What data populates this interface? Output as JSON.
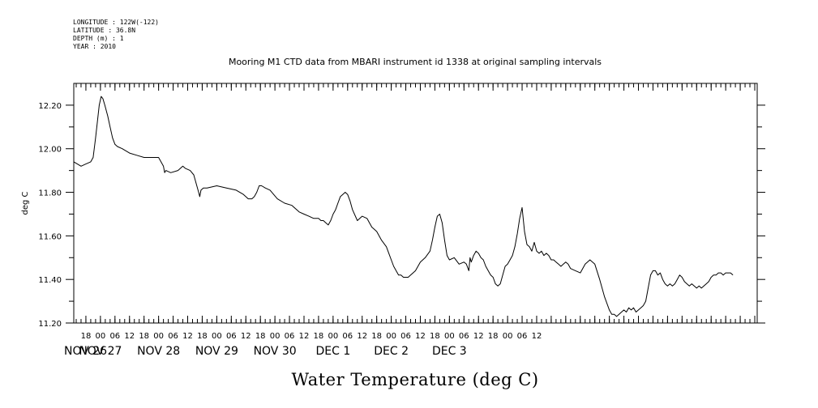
{
  "header": {
    "meta_lines": [
      "LONGITUDE : 122W(-122)",
      "LATITUDE : 36.8N",
      "DEPTH (m) : 1",
      "YEAR : 2010"
    ],
    "title": "Mooring M1 CTD data from MBARI instrument id 1338 at original sampling intervals"
  },
  "chart_data": {
    "type": "line",
    "title": "Mooring M1 CTD data from MBARI instrument id 1338 at original sampling intervals",
    "xlabel": "Water Temperature (deg C)",
    "ylabel": "deg C",
    "x_range": [
      "2010-11-26 13:00",
      "2010-12-03 19:00"
    ],
    "ylim": [
      11.2,
      12.3
    ],
    "y_ticks": [
      "11.20",
      "11.40",
      "11.60",
      "11.80",
      "12.00",
      "12.20"
    ],
    "x_hour_labels": [
      "18",
      "00",
      "06",
      "12",
      "18",
      "00",
      "06",
      "12",
      "18",
      "00",
      "06",
      "12",
      "18",
      "00",
      "06",
      "12",
      "18",
      "00",
      "06",
      "12",
      "18",
      "00",
      "06",
      "12",
      "18",
      "00",
      "06",
      "12",
      "18",
      "00",
      "06",
      "12"
    ],
    "day_labels": [
      "NOV 26",
      "NOV 27",
      "NOV 28",
      "NOV 29",
      "NOV 30",
      "DEC  1",
      "DEC  2",
      "DEC  3"
    ],
    "grid": false,
    "legend": "none",
    "line_color": "#000000",
    "series": [
      {
        "x_hours_from_nov26_00": [
          13.0,
          16.0,
          18.0,
          20.0,
          21.0,
          22.0,
          23.0,
          23.5,
          24.3,
          25.0,
          25.8,
          27.0,
          28.0,
          29.0,
          30.0,
          31.0,
          33.0,
          36.0,
          39.0,
          42.0,
          45.0,
          48.0,
          50.0,
          50.5,
          51.0,
          53.0,
          56.0,
          58.0,
          59.0,
          61.0,
          62.5,
          63.5,
          64.5,
          65.0,
          65.5,
          66.5,
          68.0,
          72.0,
          76.0,
          80.0,
          83.0,
          85.0,
          86.5,
          87.5,
          88.5,
          89.5,
          90.5,
          92.0,
          94.0,
          97.0,
          100.0,
          103.0,
          106.0,
          108.0,
          110.0,
          112.0,
          114.0,
          115.0,
          116.0,
          117.0,
          118.0,
          119.0,
          120.0,
          121.0,
          122.0,
          123.0,
          124.0,
          125.0,
          126.0,
          127.0,
          128.0,
          130.0,
          132.0,
          134.0,
          135.0,
          136.0,
          137.0,
          138.0,
          140.0,
          142.0,
          143.0,
          144.0,
          145.0,
          146.0,
          147.0,
          148.0,
          149.0,
          150.0,
          151.0,
          152.0,
          153.0,
          154.0,
          156.0,
          158.0,
          160.0,
          161.0,
          162.0,
          163.0,
          164.0,
          165.0,
          166.0,
          167.0,
          168.0,
          170.0,
          172.0,
          174.0,
          175.0,
          176.0,
          176.5,
          177.0,
          178.0,
          179.0,
          180.0,
          181.0,
          182.0,
          183.0,
          184.0,
          185.0,
          186.0,
          187.0,
          188.0,
          189.0,
          190.0,
          191.0,
          192.0,
          193.0,
          194.0,
          195.0,
          196.0,
          197.0,
          198.0,
          199.0,
          200.0,
          201.0,
          202.0,
          203.0,
          204.0,
          205.0,
          206.0,
          207.0,
          208.0,
          209.0,
          210.0,
          211.0,
          212.0,
          213.0,
          214.0,
          215.0,
          216.0,
          217.0,
          218.0,
          220.0,
          222.0,
          224.0,
          226.0,
          228.0,
          230.0,
          232.0,
          234.0,
          235.0,
          236.0,
          237.0,
          238.0,
          239.0,
          240.0,
          241.0,
          242.0,
          243.0,
          244.0,
          245.0,
          246.0,
          247.0,
          248.0,
          249.0,
          250.0,
          251.0,
          252.0,
          253.0,
          254.0,
          255.0,
          256.0,
          257.0,
          258.0,
          259.0,
          260.0,
          261.0,
          262.0,
          263.0,
          264.0,
          265.0,
          266.0,
          267.0,
          268.0,
          269.0,
          270.0,
          271.0,
          272.0,
          273.0,
          274.0,
          275.0,
          276.0,
          277.0,
          278.0,
          279.0,
          280.0,
          281.0,
          282.0,
          283.0,
          284.0,
          285.0,
          286.0,
          287.0,
          288.0,
          289.0,
          290.0,
          291.0
        ],
        "values": [
          11.94,
          11.92,
          11.93,
          11.94,
          11.96,
          12.05,
          12.15,
          12.2,
          12.24,
          12.23,
          12.2,
          12.15,
          12.1,
          12.05,
          12.02,
          12.01,
          12.0,
          11.98,
          11.97,
          11.96,
          11.96,
          11.96,
          11.92,
          11.89,
          11.9,
          11.89,
          11.9,
          11.92,
          11.91,
          11.9,
          11.88,
          11.84,
          11.8,
          11.78,
          11.81,
          11.82,
          11.82,
          11.83,
          11.82,
          11.81,
          11.79,
          11.77,
          11.77,
          11.78,
          11.8,
          11.83,
          11.83,
          11.82,
          11.81,
          11.77,
          11.75,
          11.74,
          11.71,
          11.7,
          11.69,
          11.68,
          11.68,
          11.67,
          11.67,
          11.66,
          11.65,
          11.67,
          11.7,
          11.72,
          11.75,
          11.78,
          11.79,
          11.8,
          11.79,
          11.76,
          11.72,
          11.67,
          11.69,
          11.68,
          11.66,
          11.64,
          11.63,
          11.62,
          11.58,
          11.55,
          11.52,
          11.49,
          11.46,
          11.44,
          11.42,
          11.42,
          11.41,
          11.41,
          11.41,
          11.42,
          11.43,
          11.44,
          11.48,
          11.5,
          11.53,
          11.58,
          11.64,
          11.69,
          11.7,
          11.66,
          11.58,
          11.51,
          11.49,
          11.5,
          11.47,
          11.48,
          11.47,
          11.44,
          11.5,
          11.48,
          11.51,
          11.53,
          11.52,
          11.5,
          11.49,
          11.46,
          11.44,
          11.42,
          11.41,
          11.38,
          11.37,
          11.38,
          11.42,
          11.46,
          11.47,
          11.49,
          11.51,
          11.55,
          11.61,
          11.68,
          11.73,
          11.62,
          11.56,
          11.55,
          11.53,
          11.57,
          11.53,
          11.52,
          11.53,
          11.51,
          11.52,
          11.51,
          11.49,
          11.49,
          11.48,
          11.47,
          11.46,
          11.47,
          11.48,
          11.47,
          11.45,
          11.44,
          11.43,
          11.47,
          11.49,
          11.47,
          11.4,
          11.32,
          11.26,
          11.24,
          11.24,
          11.23,
          11.24,
          11.25,
          11.26,
          11.25,
          11.27,
          11.26,
          11.27,
          11.25,
          11.26,
          11.27,
          11.28,
          11.3,
          11.36,
          11.42,
          11.44,
          11.44,
          11.42,
          11.43,
          11.4,
          11.38,
          11.37,
          11.38,
          11.37,
          11.38,
          11.4,
          11.42,
          11.41,
          11.39,
          11.38,
          11.37,
          11.38,
          11.37,
          11.36,
          11.37,
          11.36,
          11.37,
          11.38,
          11.39,
          11.41,
          11.42,
          11.42,
          11.43,
          11.43,
          11.42,
          11.43,
          11.43,
          11.43,
          11.42
        ]
      }
    ]
  }
}
